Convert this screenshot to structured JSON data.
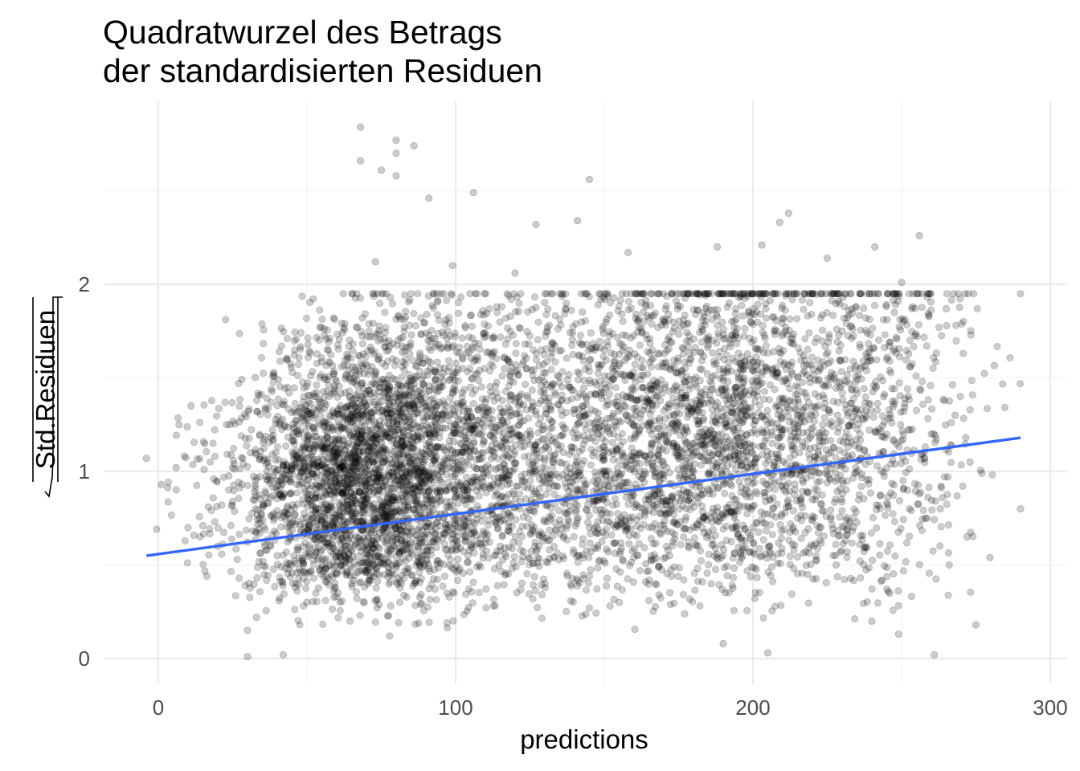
{
  "chart_data": {
    "type": "scatter",
    "title_lines": [
      "Quadratwurzel des Betrags",
      "der standardisierten Residuen"
    ],
    "xlabel": "predictions",
    "ylabel": "Std.Residuen",
    "ylabel_note": "wrapped in a square-root of absolute value symbol",
    "xlim": [
      -18,
      307
    ],
    "ylim": [
      -0.13,
      2.98
    ],
    "xticks": [
      0,
      100,
      200,
      300
    ],
    "xtick_labels": [
      "0",
      "100",
      "200",
      "300"
    ],
    "yticks": [
      0,
      1,
      2
    ],
    "ytick_labels": [
      "0",
      "1",
      "2"
    ],
    "x_minor": [
      50,
      150,
      250
    ],
    "y_minor": [
      0.5,
      1.5,
      2.5
    ],
    "grid": true,
    "legend": "none",
    "point_color": "#000000",
    "point_opacity": 0.2,
    "point_count_approx": 10000,
    "series": [
      {
        "kind": "points",
        "note": "dense point cloud; representative sample of the visible data points",
        "points": [
          [
            -4,
            1.07
          ],
          [
            1,
            0.93
          ],
          [
            6,
            1.02
          ],
          [
            7,
            1.25
          ],
          [
            10,
            0.7
          ],
          [
            11,
            1.35
          ],
          [
            14,
            0.65
          ],
          [
            15,
            0.71
          ],
          [
            20,
            0.6
          ],
          [
            23,
            1.25
          ],
          [
            25,
            0.84
          ],
          [
            27,
            1.47
          ],
          [
            30,
            0.15
          ],
          [
            30,
            0.01
          ],
          [
            31,
            1.1
          ],
          [
            33,
            0.22
          ],
          [
            36,
            1.34
          ],
          [
            40,
            0.55
          ],
          [
            42,
            0.02
          ],
          [
            44,
            1.42
          ],
          [
            47,
            1.07
          ],
          [
            50,
            0.3
          ],
          [
            53,
            1.4
          ],
          [
            54,
            1.34
          ],
          [
            56,
            0.95
          ],
          [
            60,
            0.45
          ],
          [
            64,
            0.8
          ],
          [
            65,
            0.4
          ],
          [
            68,
            2.84
          ],
          [
            68,
            2.66
          ],
          [
            70,
            1.0
          ],
          [
            73,
            2.12
          ],
          [
            75,
            2.61
          ],
          [
            76,
            1.71
          ],
          [
            78,
            1.93
          ],
          [
            80,
            2.77
          ],
          [
            80,
            2.7
          ],
          [
            80,
            2.58
          ],
          [
            82,
            1.18
          ],
          [
            85,
            0.62
          ],
          [
            86,
            2.74
          ],
          [
            88,
            0.5
          ],
          [
            91,
            2.46
          ],
          [
            95,
            1.45
          ],
          [
            99,
            2.1
          ],
          [
            100,
            1.1
          ],
          [
            105,
            0.85
          ],
          [
            106,
            2.49
          ],
          [
            110,
            1.37
          ],
          [
            115,
            0.6
          ],
          [
            118,
            1.2
          ],
          [
            120,
            2.06
          ],
          [
            125,
            0.95
          ],
          [
            127,
            2.32
          ],
          [
            130,
            0.4
          ],
          [
            135,
            1.05
          ],
          [
            141,
            2.34
          ],
          [
            145,
            2.56
          ],
          [
            145,
            0.7
          ],
          [
            150,
            1.65
          ],
          [
            155,
            0.3
          ],
          [
            158,
            2.17
          ],
          [
            160,
            1.1
          ],
          [
            165,
            0.85
          ],
          [
            170,
            1.8
          ],
          [
            172,
            0.55
          ],
          [
            175,
            1.25
          ],
          [
            180,
            1.0
          ],
          [
            184,
            1.94
          ],
          [
            186,
            0.4
          ],
          [
            188,
            2.2
          ],
          [
            190,
            0.08
          ],
          [
            192,
            1.9
          ],
          [
            195,
            1.18
          ],
          [
            199,
            1.6
          ],
          [
            200,
            0.7
          ],
          [
            203,
            2.21
          ],
          [
            205,
            0.03
          ],
          [
            209,
            2.33
          ],
          [
            212,
            2.38
          ],
          [
            215,
            1.3
          ],
          [
            220,
            0.85
          ],
          [
            225,
            2.14
          ],
          [
            228,
            0.5
          ],
          [
            230,
            1.75
          ],
          [
            236,
            1.2
          ],
          [
            240,
            0.2
          ],
          [
            241,
            2.2
          ],
          [
            245,
            1.6
          ],
          [
            246,
            0.35
          ],
          [
            249,
            0.13
          ],
          [
            250,
            2.01
          ],
          [
            252,
            0.9
          ],
          [
            255,
            1.95
          ],
          [
            256,
            2.26
          ],
          [
            258,
            0.75
          ],
          [
            260,
            1.2
          ],
          [
            261,
            0.02
          ],
          [
            263,
            0.8
          ],
          [
            265,
            1.87
          ],
          [
            266,
            0.5
          ],
          [
            268,
            1.3
          ],
          [
            272,
            0.65
          ],
          [
            273,
            1.05
          ],
          [
            275,
            0.18
          ],
          [
            277,
            0.99
          ],
          [
            290,
            0.8
          ]
        ]
      },
      {
        "kind": "trend",
        "color": "#3366ff",
        "points": [
          [
            -4,
            0.55
          ],
          [
            290,
            1.18
          ]
        ]
      }
    ]
  }
}
